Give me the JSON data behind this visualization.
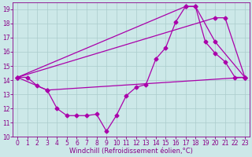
{
  "title": "",
  "xlabel": "Windchill (Refroidissement éolien,°C)",
  "ylabel": "",
  "xlim": [
    -0.5,
    23.5
  ],
  "ylim": [
    10,
    19.5
  ],
  "xticks": [
    0,
    1,
    2,
    3,
    4,
    5,
    6,
    7,
    8,
    9,
    10,
    11,
    12,
    13,
    14,
    15,
    16,
    17,
    18,
    19,
    20,
    21,
    22,
    23
  ],
  "yticks": [
    10,
    11,
    12,
    13,
    14,
    15,
    16,
    17,
    18,
    19
  ],
  "background_color": "#cce8e8",
  "grid_color": "#aacccc",
  "line_color": "#aa00aa",
  "line1_x": [
    0,
    1,
    2,
    3,
    4,
    5,
    6,
    7,
    8,
    9,
    10,
    11,
    12,
    13,
    14,
    15,
    16,
    17,
    18,
    19,
    20,
    21,
    22,
    23
  ],
  "line1_y": [
    14.2,
    14.2,
    13.6,
    13.3,
    12.0,
    11.5,
    11.5,
    11.5,
    11.6,
    10.4,
    11.5,
    12.9,
    13.5,
    13.7,
    15.5,
    16.3,
    18.1,
    19.2,
    19.2,
    16.7,
    15.9,
    15.3,
    14.2,
    14.2
  ],
  "line2_x": [
    0,
    3,
    23
  ],
  "line2_y": [
    14.2,
    13.3,
    14.2
  ],
  "line3_x": [
    0,
    17,
    18,
    20,
    23
  ],
  "line3_y": [
    14.2,
    19.2,
    19.2,
    16.7,
    14.2
  ],
  "line4_x": [
    0,
    20,
    21,
    23
  ],
  "line4_y": [
    14.2,
    18.4,
    18.4,
    14.2
  ],
  "marker": "D",
  "marker_size": 2.5,
  "line_width": 0.9,
  "font_color": "#880088",
  "font_size_label": 6,
  "font_size_tick": 5.5
}
